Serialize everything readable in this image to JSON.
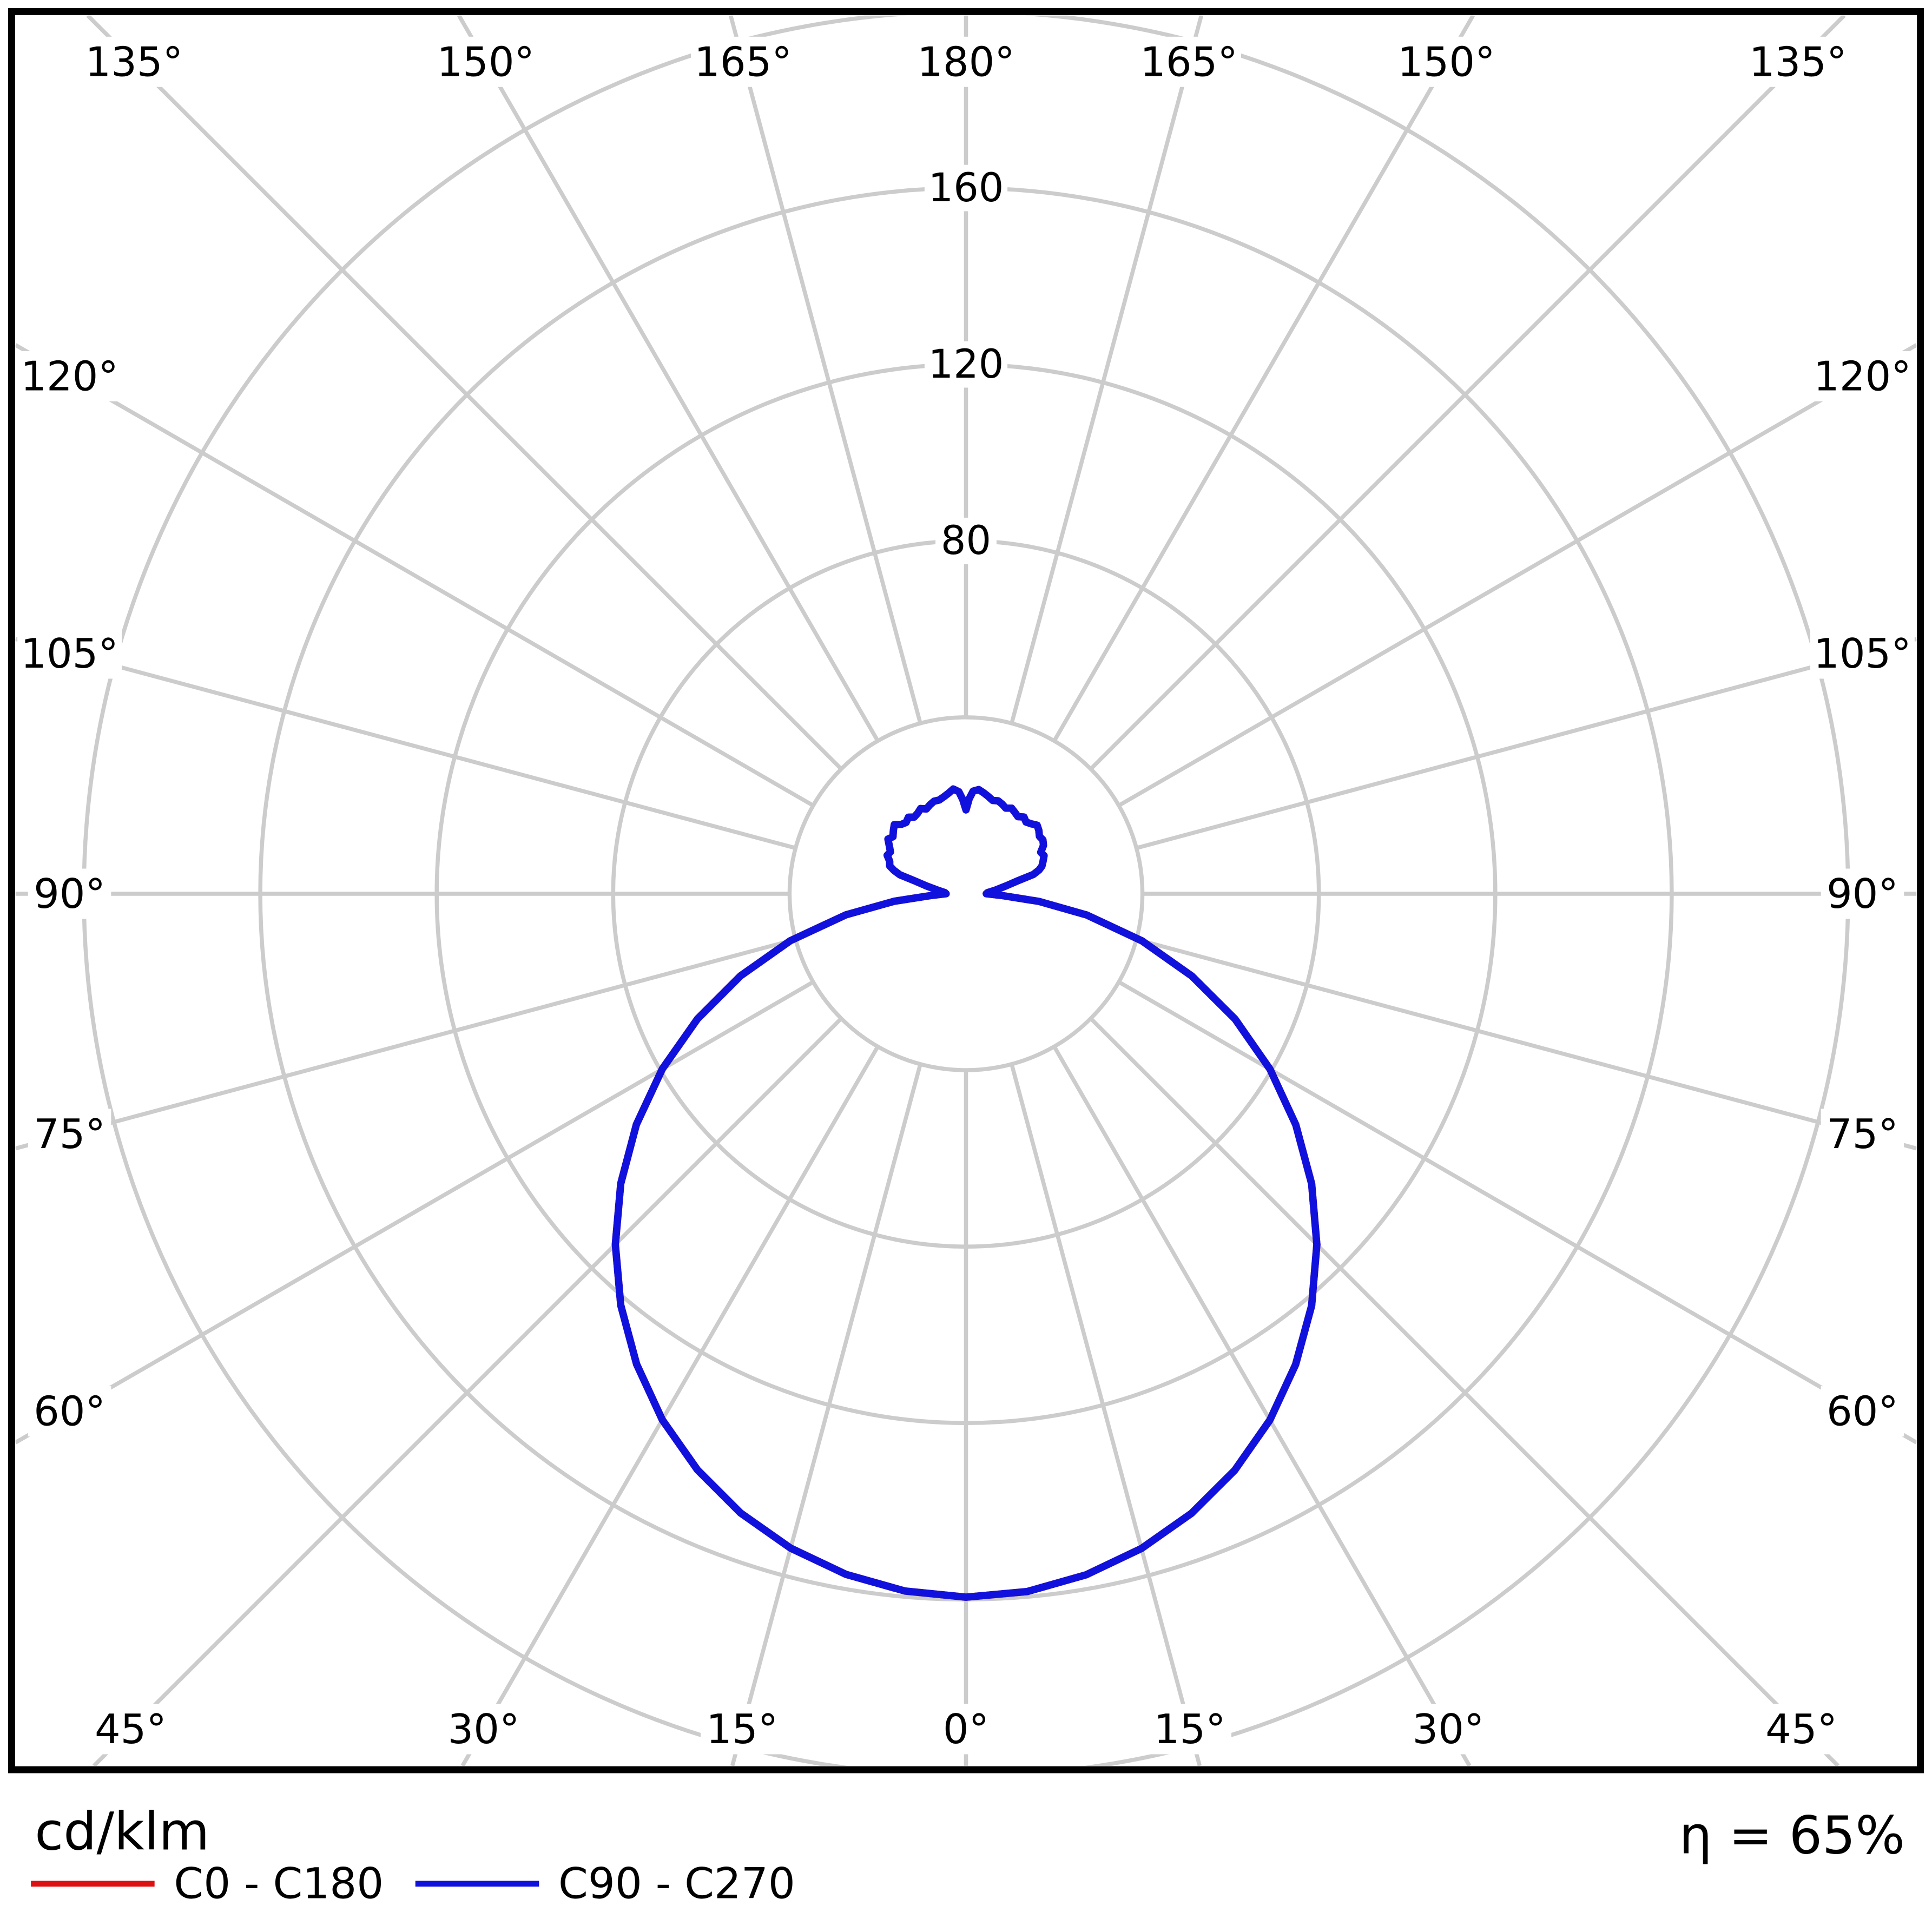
{
  "chart_data": {
    "type": "polar_photometric",
    "description": "Luminous intensity distribution polar diagram, angles in degrees from nadir (0° bottom, 180° top), radial unit cd/klm",
    "unit_label": "cd/klm",
    "efficiency_label": "η = 65%",
    "grid": {
      "color": "#cccccc",
      "frame_color": "#000000",
      "background": "#ffffff",
      "angle_step_deg": 15,
      "rings_cd_klm": [
        40,
        80,
        120,
        160,
        200
      ],
      "ring_tick_labels": [
        {
          "value": 80,
          "label": "80"
        },
        {
          "value": 120,
          "label": "120"
        },
        {
          "value": 160,
          "label": "160"
        }
      ],
      "angle_labels": [
        {
          "deg": 0,
          "label": "0°"
        },
        {
          "deg": 15,
          "label": "15°"
        },
        {
          "deg": 30,
          "label": "30°"
        },
        {
          "deg": 45,
          "label": "45°"
        },
        {
          "deg": 60,
          "label": "60°"
        },
        {
          "deg": 75,
          "label": "75°"
        },
        {
          "deg": 90,
          "label": "90°"
        },
        {
          "deg": 105,
          "label": "105°"
        },
        {
          "deg": 120,
          "label": "120°"
        },
        {
          "deg": 135,
          "label": "135°"
        },
        {
          "deg": 150,
          "label": "150°"
        },
        {
          "deg": 165,
          "label": "165°"
        },
        {
          "deg": 180,
          "label": "180°"
        }
      ]
    },
    "legend": [
      {
        "label": "C0 - C180",
        "color": "#dd1111"
      },
      {
        "label": "C90 - C270",
        "color": "#1111dd"
      }
    ],
    "series": [
      {
        "name": "C0 - C180",
        "color": "#dd1111",
        "note": "fully hidden behind C90 - C270 curve in the image",
        "points_gamma_cd": [
          [
            -180,
            19.0
          ],
          [
            -178,
            21.4
          ],
          [
            -176,
            23.2
          ],
          [
            -173,
            23.9
          ],
          [
            -170,
            23.1
          ],
          [
            -167,
            22.5
          ],
          [
            -164,
            22.1
          ],
          [
            -161,
            22.2
          ],
          [
            -158,
            21.8
          ],
          [
            -155,
            21.2
          ],
          [
            -152,
            21.9
          ],
          [
            -149,
            21.3
          ],
          [
            -146,
            21.0
          ],
          [
            -143,
            21.7
          ],
          [
            -140,
            21.1
          ],
          [
            -137,
            21.5
          ],
          [
            -134,
            22.6
          ],
          [
            -131,
            21.8
          ],
          [
            -128,
            21.0
          ],
          [
            -125,
            21.6
          ],
          [
            -122,
            20.5
          ],
          [
            -119,
            19.6
          ],
          [
            -116,
            19.9
          ],
          [
            -113,
            18.8
          ],
          [
            -110,
            18.4
          ],
          [
            -108,
            17.2
          ],
          [
            -106,
            15.6
          ],
          [
            -104,
            11.9
          ],
          [
            -101,
            9.1
          ],
          [
            -97,
            6.4
          ],
          [
            -93,
            4.8
          ],
          [
            -90,
            4.5
          ],
          [
            -87,
            8.2
          ],
          [
            -84,
            16.4
          ],
          [
            -80,
            27.6
          ],
          [
            -75,
            41.2
          ],
          [
            -70,
            54.4
          ],
          [
            -65,
            67.2
          ],
          [
            -60,
            79.5
          ],
          [
            -55,
            91.2
          ],
          [
            -50,
            102.2
          ],
          [
            -45,
            112.4
          ],
          [
            -40,
            121.8
          ],
          [
            -35,
            130.2
          ],
          [
            -30,
            137.7
          ],
          [
            -25,
            144.1
          ],
          [
            -20,
            149.4
          ],
          [
            -15,
            153.6
          ],
          [
            -10,
            156.7
          ],
          [
            -5,
            158.7
          ],
          [
            0,
            159.5
          ],
          [
            5,
            158.8
          ],
          [
            10,
            156.8
          ],
          [
            15,
            153.7
          ],
          [
            20,
            149.5
          ],
          [
            25,
            144.2
          ],
          [
            30,
            137.8
          ],
          [
            35,
            130.3
          ],
          [
            40,
            121.9
          ],
          [
            45,
            112.5
          ],
          [
            50,
            102.3
          ],
          [
            55,
            91.3
          ],
          [
            60,
            79.6
          ],
          [
            65,
            67.3
          ],
          [
            70,
            54.5
          ],
          [
            75,
            41.3
          ],
          [
            80,
            27.8
          ],
          [
            84,
            16.7
          ],
          [
            87,
            8.4
          ],
          [
            90,
            4.6
          ],
          [
            93,
            4.9
          ],
          [
            97,
            6.6
          ],
          [
            101,
            9.3
          ],
          [
            104,
            12.1
          ],
          [
            106,
            15.9
          ],
          [
            108,
            17.4
          ],
          [
            110,
            18.3
          ],
          [
            113,
            19.0
          ],
          [
            116,
            19.7
          ],
          [
            119,
            19.4
          ],
          [
            122,
            20.7
          ],
          [
            125,
            21.3
          ],
          [
            128,
            21.1
          ],
          [
            131,
            21.9
          ],
          [
            134,
            22.4
          ],
          [
            137,
            21.7
          ],
          [
            140,
            21.2
          ],
          [
            143,
            21.8
          ],
          [
            146,
            21.1
          ],
          [
            149,
            21.5
          ],
          [
            152,
            22.0
          ],
          [
            155,
            21.4
          ],
          [
            158,
            21.9
          ],
          [
            161,
            22.3
          ],
          [
            164,
            22.0
          ],
          [
            167,
            22.6
          ],
          [
            170,
            23.2
          ],
          [
            173,
            23.8
          ],
          [
            176,
            23.3
          ],
          [
            178,
            21.6
          ],
          [
            180,
            19.0
          ]
        ]
      },
      {
        "name": "C90 - C270",
        "color": "#1111dd",
        "points_gamma_cd": [
          [
            -180,
            19.0
          ],
          [
            -178,
            21.4
          ],
          [
            -176,
            23.2
          ],
          [
            -173,
            23.9
          ],
          [
            -170,
            23.1
          ],
          [
            -167,
            22.5
          ],
          [
            -164,
            22.1
          ],
          [
            -161,
            22.2
          ],
          [
            -158,
            21.8
          ],
          [
            -155,
            21.2
          ],
          [
            -152,
            21.9
          ],
          [
            -149,
            21.3
          ],
          [
            -146,
            21.0
          ],
          [
            -143,
            21.7
          ],
          [
            -140,
            21.1
          ],
          [
            -137,
            21.5
          ],
          [
            -134,
            22.6
          ],
          [
            -131,
            21.8
          ],
          [
            -128,
            21.0
          ],
          [
            -125,
            21.6
          ],
          [
            -122,
            20.5
          ],
          [
            -119,
            19.6
          ],
          [
            -116,
            19.9
          ],
          [
            -113,
            18.8
          ],
          [
            -110,
            18.4
          ],
          [
            -108,
            17.2
          ],
          [
            -106,
            15.6
          ],
          [
            -104,
            11.9
          ],
          [
            -101,
            9.1
          ],
          [
            -97,
            6.4
          ],
          [
            -93,
            4.8
          ],
          [
            -90,
            4.5
          ],
          [
            -87,
            8.2
          ],
          [
            -84,
            16.4
          ],
          [
            -80,
            27.6
          ],
          [
            -75,
            41.2
          ],
          [
            -70,
            54.4
          ],
          [
            -65,
            67.2
          ],
          [
            -60,
            79.5
          ],
          [
            -55,
            91.2
          ],
          [
            -50,
            102.2
          ],
          [
            -45,
            112.4
          ],
          [
            -40,
            121.8
          ],
          [
            -35,
            130.2
          ],
          [
            -30,
            137.7
          ],
          [
            -25,
            144.1
          ],
          [
            -20,
            149.4
          ],
          [
            -15,
            153.6
          ],
          [
            -10,
            156.7
          ],
          [
            -5,
            158.7
          ],
          [
            0,
            159.5
          ],
          [
            5,
            158.8
          ],
          [
            10,
            156.8
          ],
          [
            15,
            153.7
          ],
          [
            20,
            149.5
          ],
          [
            25,
            144.2
          ],
          [
            30,
            137.8
          ],
          [
            35,
            130.3
          ],
          [
            40,
            121.9
          ],
          [
            45,
            112.5
          ],
          [
            50,
            102.3
          ],
          [
            55,
            91.3
          ],
          [
            60,
            79.6
          ],
          [
            65,
            67.3
          ],
          [
            70,
            54.5
          ],
          [
            75,
            41.3
          ],
          [
            80,
            27.8
          ],
          [
            84,
            16.7
          ],
          [
            87,
            8.4
          ],
          [
            90,
            4.6
          ],
          [
            93,
            4.9
          ],
          [
            97,
            6.6
          ],
          [
            101,
            9.3
          ],
          [
            104,
            12.1
          ],
          [
            106,
            15.9
          ],
          [
            108,
            17.4
          ],
          [
            110,
            18.3
          ],
          [
            113,
            19.0
          ],
          [
            116,
            19.7
          ],
          [
            119,
            19.4
          ],
          [
            122,
            20.7
          ],
          [
            125,
            21.3
          ],
          [
            128,
            21.1
          ],
          [
            131,
            21.9
          ],
          [
            134,
            22.4
          ],
          [
            137,
            21.7
          ],
          [
            140,
            21.2
          ],
          [
            143,
            21.8
          ],
          [
            146,
            21.1
          ],
          [
            149,
            21.5
          ],
          [
            152,
            22.0
          ],
          [
            155,
            21.4
          ],
          [
            158,
            21.9
          ],
          [
            161,
            22.3
          ],
          [
            164,
            22.0
          ],
          [
            167,
            22.6
          ],
          [
            170,
            23.2
          ],
          [
            173,
            23.8
          ],
          [
            176,
            23.3
          ],
          [
            178,
            21.6
          ],
          [
            180,
            19.0
          ]
        ]
      }
    ]
  },
  "footer": {
    "unit": "cd/klm",
    "eta": "η = 65%"
  }
}
